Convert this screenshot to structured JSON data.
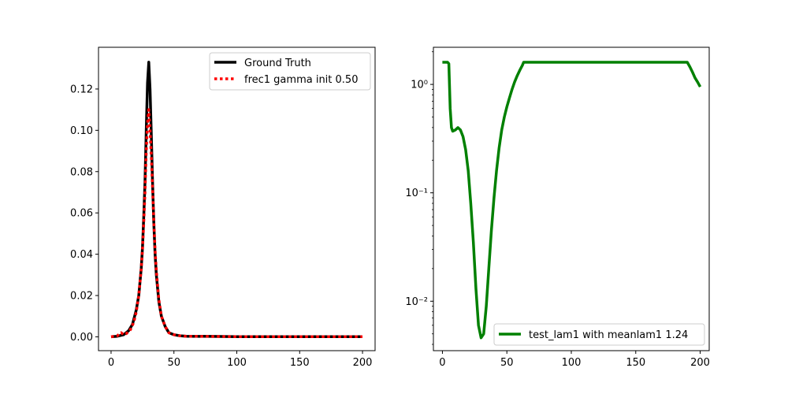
{
  "chart_data": [
    {
      "type": "line",
      "xlim": [
        -10,
        210
      ],
      "ylim": [
        -0.0067,
        0.1402
      ],
      "x_ticks": [
        0,
        50,
        100,
        150,
        200
      ],
      "x_tick_labels": [
        "0",
        "50",
        "100",
        "150",
        "200"
      ],
      "y_ticks": [
        0.0,
        0.02,
        0.04,
        0.06,
        0.08,
        0.1,
        0.12
      ],
      "y_tick_labels": [
        "0.00",
        "0.02",
        "0.04",
        "0.06",
        "0.08",
        "0.10",
        "0.12"
      ],
      "legend_placement": "upper right",
      "series": [
        {
          "name": "Ground Truth",
          "color": "#000000",
          "style": "solid",
          "x": [
            0,
            5,
            10,
            14,
            17,
            20,
            22,
            24,
            25,
            26,
            27,
            28,
            29,
            30,
            31,
            32,
            33,
            34,
            35,
            36,
            38,
            40,
            43,
            46,
            50,
            55,
            60,
            80,
            100,
            150,
            200
          ],
          "y": [
            0.0,
            0.0003,
            0.001,
            0.003,
            0.006,
            0.013,
            0.02,
            0.033,
            0.043,
            0.058,
            0.075,
            0.1,
            0.123,
            0.133,
            0.12,
            0.098,
            0.075,
            0.055,
            0.04,
            0.03,
            0.017,
            0.01,
            0.005,
            0.002,
            0.001,
            0.0005,
            0.0003,
            0.0002,
            0.0001,
            0.0001,
            0.0001
          ]
        },
        {
          "name": "frec1 gamma init 0.50",
          "color": "#ff0000",
          "style": "dotted",
          "x": [
            0,
            5,
            8,
            10,
            12,
            15,
            18,
            20,
            22,
            24,
            25,
            26,
            27,
            28,
            29,
            30,
            31,
            32,
            33,
            34,
            35,
            36,
            38,
            40,
            43,
            46,
            50,
            55,
            60,
            100,
            150,
            200
          ],
          "y": [
            0.0,
            0.0005,
            0.002,
            0.001,
            0.0015,
            0.003,
            0.007,
            0.012,
            0.02,
            0.033,
            0.042,
            0.055,
            0.07,
            0.09,
            0.103,
            0.11,
            0.1,
            0.088,
            0.072,
            0.056,
            0.042,
            0.032,
            0.018,
            0.01,
            0.005,
            0.002,
            0.001,
            0.0005,
            0.0003,
            0.0001,
            0.0001,
            0.0001
          ]
        }
      ]
    },
    {
      "type": "line",
      "xlim": [
        -7,
        207
      ],
      "ylim": [
        0.0035,
        2.2
      ],
      "y_scale": "log",
      "x_ticks": [
        0,
        50,
        100,
        150,
        200
      ],
      "x_tick_labels": [
        "0",
        "50",
        "100",
        "150",
        "200"
      ],
      "y_ticks": [
        0.01,
        0.1,
        1.0
      ],
      "y_tick_labels": [
        "10⁻²",
        "10⁻¹",
        "10⁰"
      ],
      "legend_placement": "lower right",
      "series": [
        {
          "name": "test_lam1 with meanlam1 1.24",
          "color": "#008000",
          "style": "solid",
          "x": [
            0,
            2,
            4,
            5,
            6,
            7,
            8,
            10,
            12,
            14,
            16,
            18,
            20,
            22,
            24,
            26,
            28,
            30,
            32,
            34,
            36,
            38,
            40,
            42,
            44,
            46,
            48,
            50,
            52,
            54,
            56,
            58,
            60,
            62,
            63,
            65,
            100,
            150,
            190,
            192,
            194,
            196,
            198,
            200
          ],
          "y": [
            1.6,
            1.6,
            1.6,
            1.55,
            0.6,
            0.4,
            0.37,
            0.38,
            0.4,
            0.38,
            0.33,
            0.25,
            0.16,
            0.08,
            0.035,
            0.013,
            0.006,
            0.0046,
            0.005,
            0.009,
            0.02,
            0.045,
            0.09,
            0.16,
            0.26,
            0.38,
            0.5,
            0.62,
            0.75,
            0.9,
            1.05,
            1.2,
            1.35,
            1.5,
            1.6,
            1.6,
            1.6,
            1.6,
            1.6,
            1.45,
            1.3,
            1.15,
            1.05,
            0.95
          ]
        }
      ]
    }
  ]
}
